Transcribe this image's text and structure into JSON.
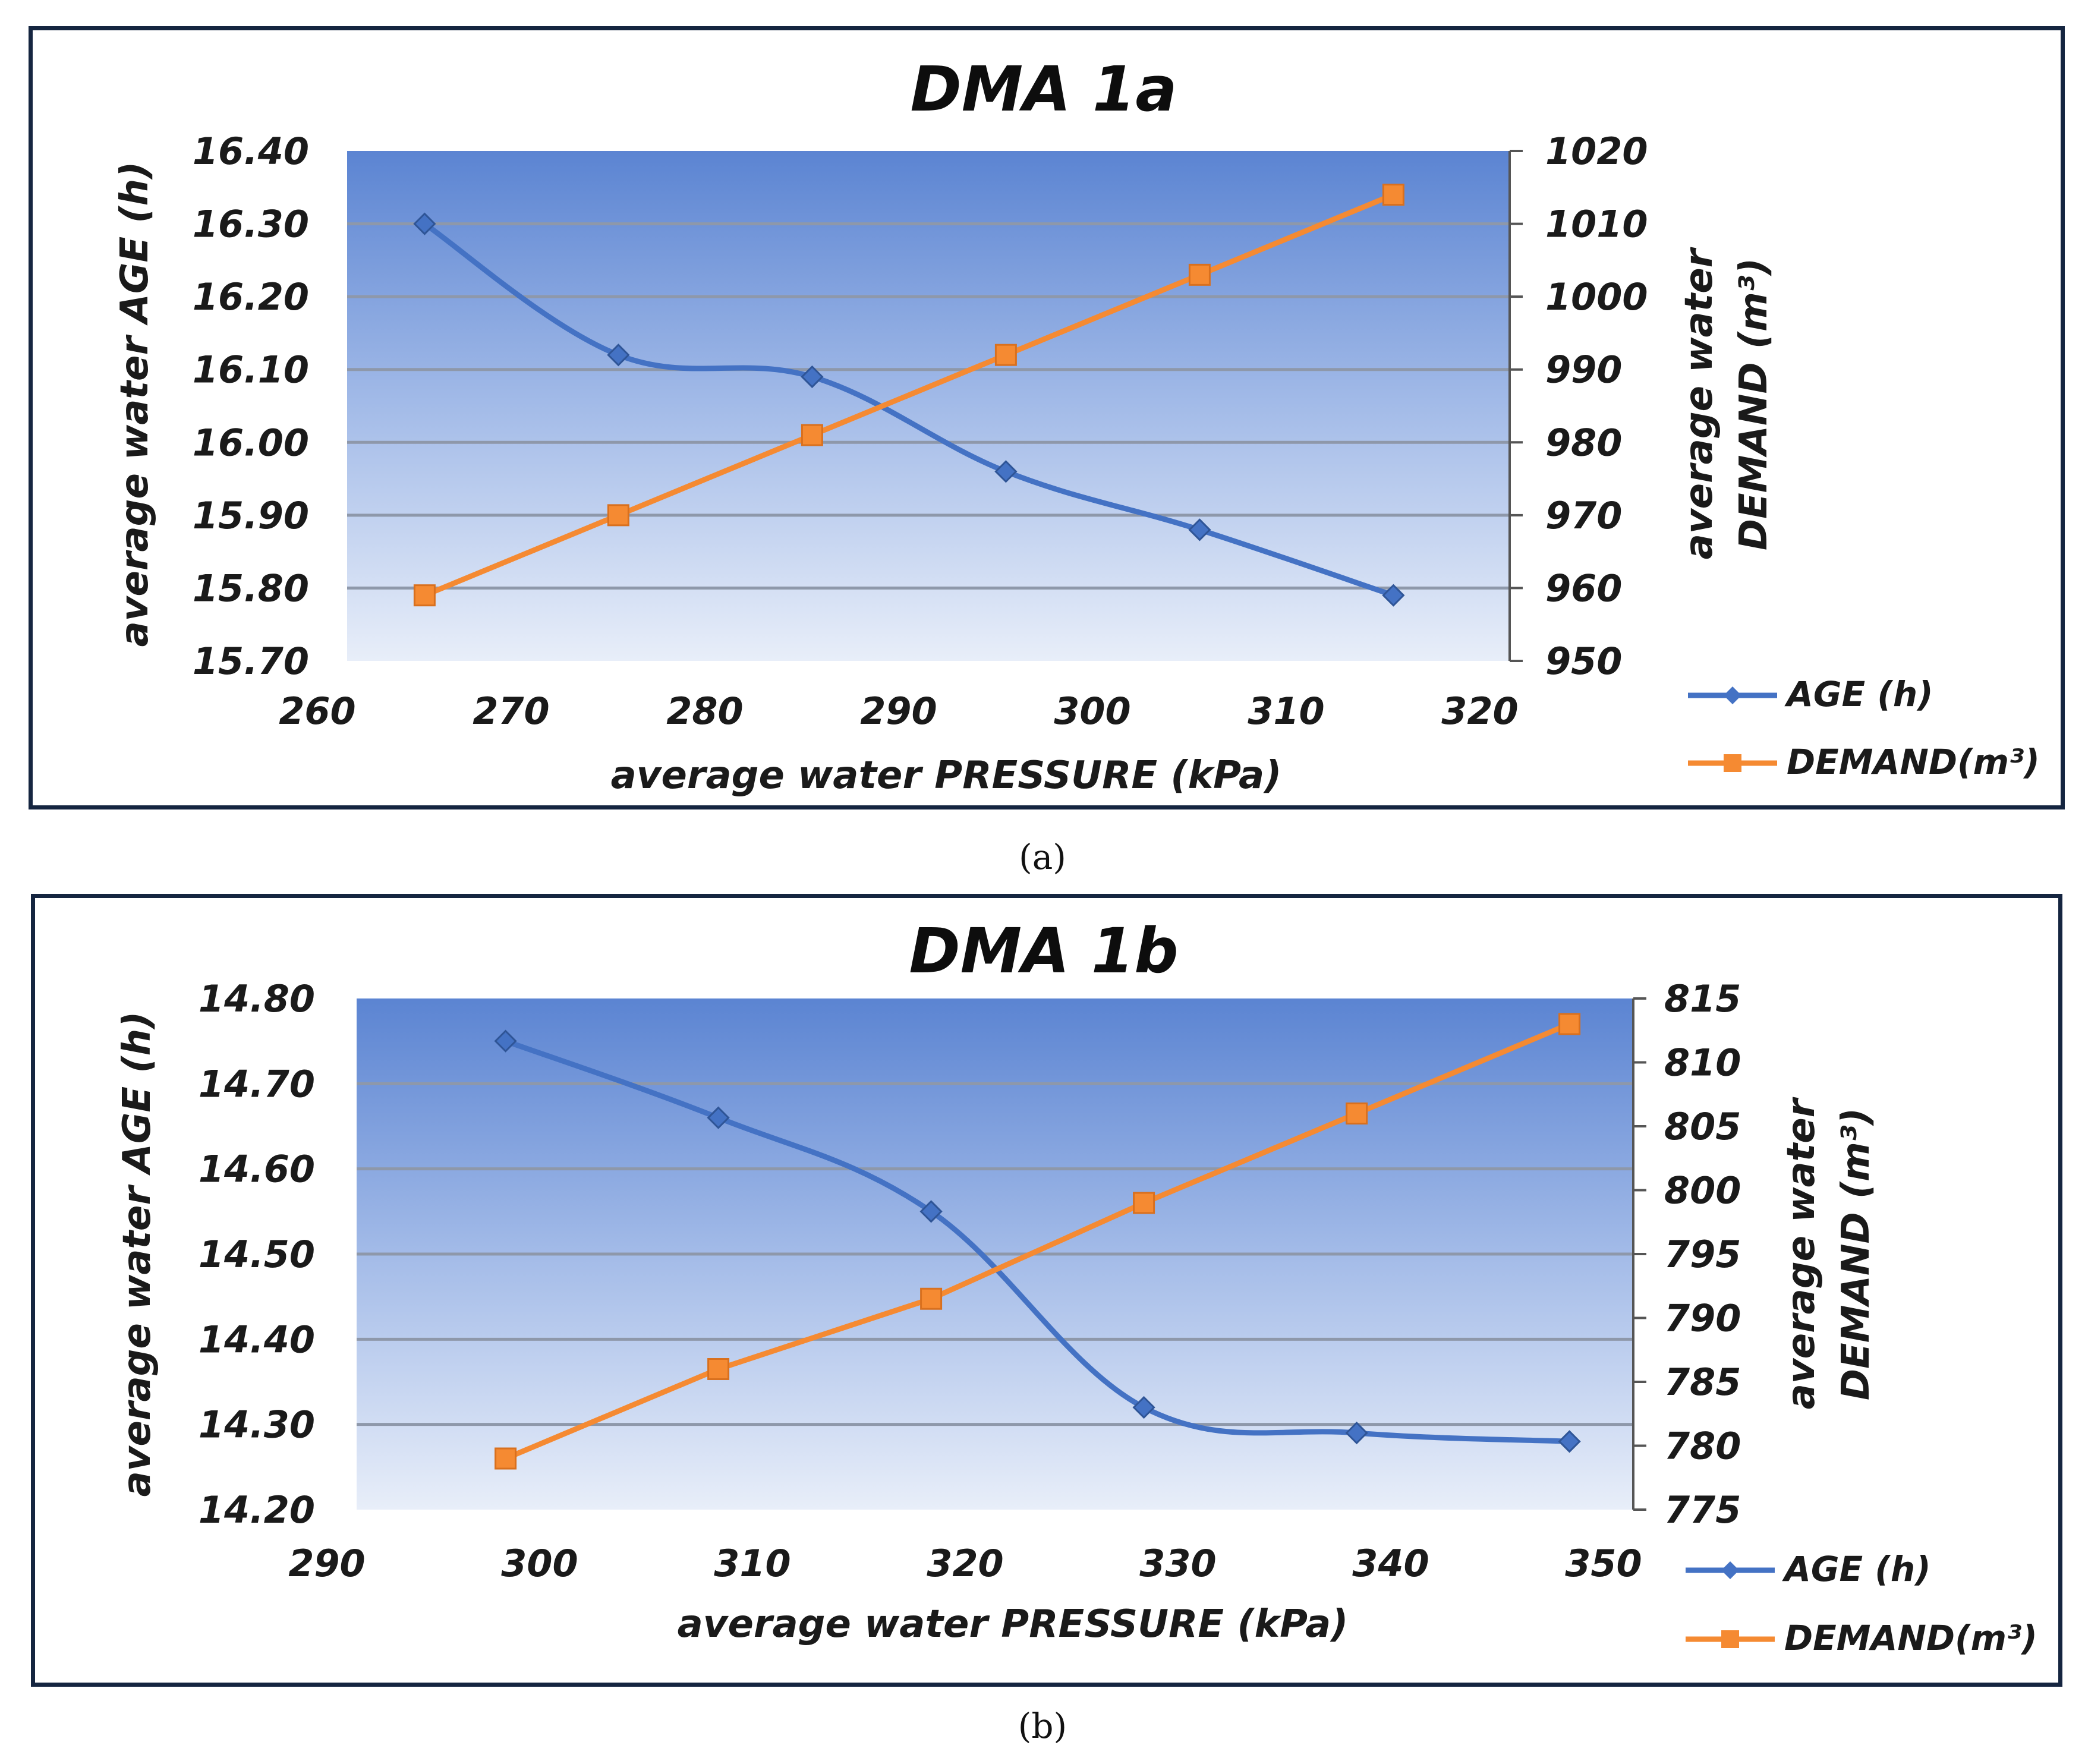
{
  "chart_data": [
    {
      "type": "line",
      "panel_caption": "(a)",
      "title": "DMA 1a",
      "xlabel": "average water PRESSURE (kPa)",
      "ylabel_left": "average water AGE (h)",
      "ylabel_right_line1": "average water",
      "ylabel_right_line2": "DEMAND (m³)",
      "xlim": [
        260,
        320
      ],
      "xticks": [
        "260",
        "270",
        "280",
        "290",
        "300",
        "310",
        "320"
      ],
      "ylim_left": [
        15.7,
        16.4
      ],
      "yticks_left": [
        "15.70",
        "15.80",
        "15.90",
        "16.00",
        "16.10",
        "16.20",
        "16.30",
        "16.40"
      ],
      "ylim_right": [
        950,
        1020
      ],
      "yticks_right": [
        "950",
        "960",
        "970",
        "980",
        "990",
        "1000",
        "1010",
        "1020"
      ],
      "series": [
        {
          "name": "AGE (h)",
          "axis": "left",
          "color": "#4472c4",
          "marker": "diamond",
          "x": [
            264,
            274,
            284,
            294,
            304,
            314
          ],
          "values": [
            16.3,
            16.12,
            16.09,
            15.96,
            15.88,
            15.79
          ]
        },
        {
          "name": "DEMAND(m³)",
          "axis": "right",
          "color": "#f58a32",
          "marker": "square",
          "x": [
            264,
            274,
            284,
            294,
            304,
            314
          ],
          "values": [
            959,
            970,
            981,
            992,
            1003,
            1014
          ]
        }
      ],
      "legend": [
        "AGE (h)",
        "DEMAND(m³)"
      ]
    },
    {
      "type": "line",
      "panel_caption": "(b)",
      "title": "DMA 1b",
      "xlabel": "average water PRESSURE (kPa)",
      "ylabel_left": "average water AGE (h)",
      "ylabel_right_line1": "average water",
      "ylabel_right_line2": "DEMAND (m³)",
      "xlim": [
        290,
        350
      ],
      "xticks": [
        "290",
        "300",
        "310",
        "320",
        "330",
        "340",
        "350"
      ],
      "ylim_left": [
        14.2,
        14.8
      ],
      "yticks_left": [
        "14.20",
        "14.30",
        "14.40",
        "14.50",
        "14.60",
        "14.70",
        "14.80"
      ],
      "ylim_right": [
        775,
        815
      ],
      "yticks_right": [
        "775",
        "780",
        "785",
        "790",
        "795",
        "800",
        "805",
        "810",
        "815"
      ],
      "series": [
        {
          "name": "AGE (h)",
          "axis": "left",
          "color": "#4472c4",
          "marker": "diamond",
          "x": [
            297,
            307,
            317,
            327,
            337,
            347
          ],
          "values": [
            14.75,
            14.66,
            14.55,
            14.32,
            14.29,
            14.28
          ]
        },
        {
          "name": "DEMAND(m³)",
          "axis": "right",
          "color": "#f58a32",
          "marker": "square",
          "x": [
            297,
            307,
            317,
            327,
            337,
            347
          ],
          "values": [
            779,
            786,
            791.5,
            799,
            806,
            813
          ]
        }
      ],
      "legend": [
        "AGE (h)",
        "DEMAND(m³)"
      ]
    }
  ]
}
